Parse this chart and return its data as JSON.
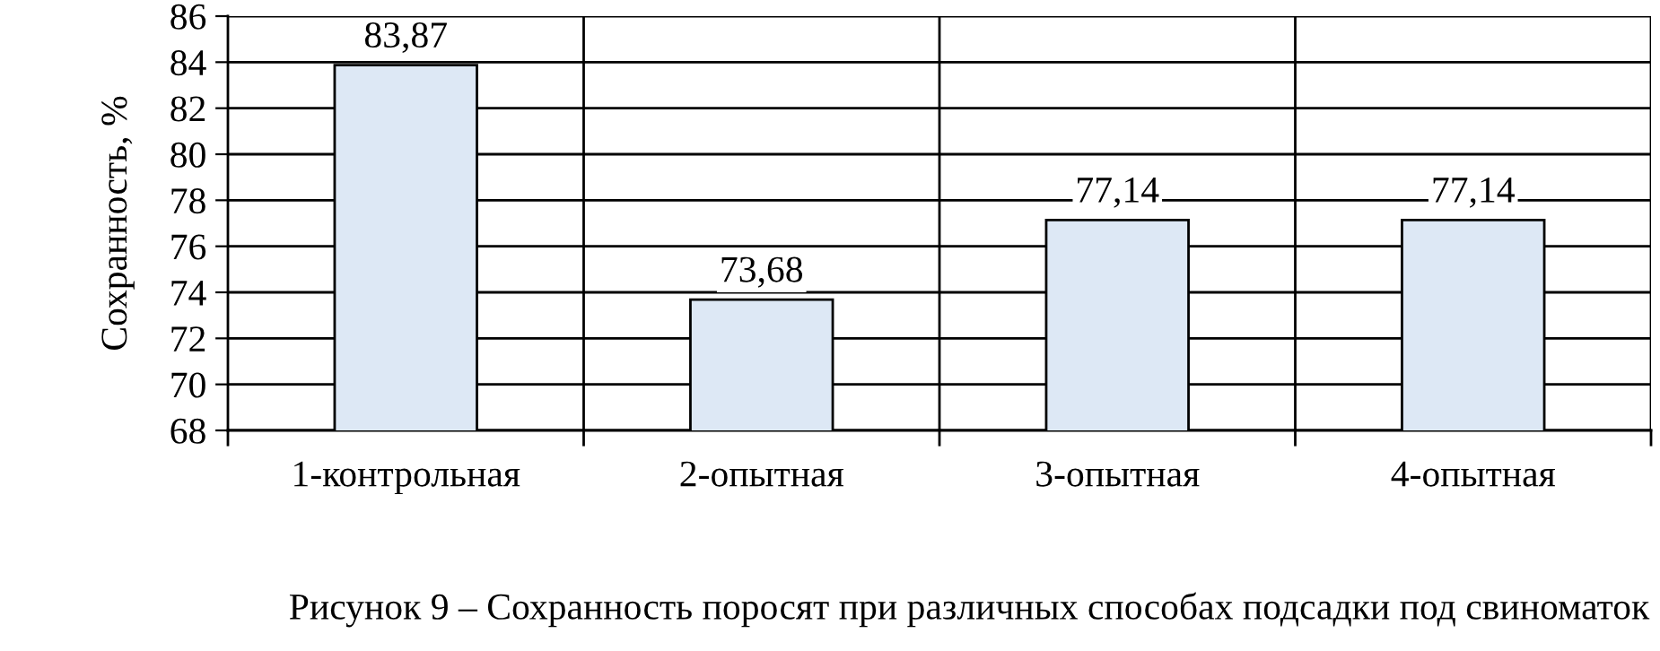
{
  "chart_data": {
    "type": "bar",
    "title": "Рисунок 9 – Сохранность поросят при различных способах подсадки под свиноматок",
    "ylabel": "Сохранность, %",
    "categories": [
      "1-контрольная",
      "2-опытная",
      "3-опытная",
      "4-опытная"
    ],
    "values": [
      83.87,
      73.68,
      77.14,
      77.14
    ],
    "value_labels": [
      "83,87",
      "73,68",
      "77,14",
      "77,14"
    ],
    "color": "#dde8f5",
    "ylim": [
      68,
      86
    ],
    "yticks": [
      68,
      70,
      72,
      74,
      76,
      78,
      80,
      82,
      84,
      86
    ],
    "grid": true
  }
}
